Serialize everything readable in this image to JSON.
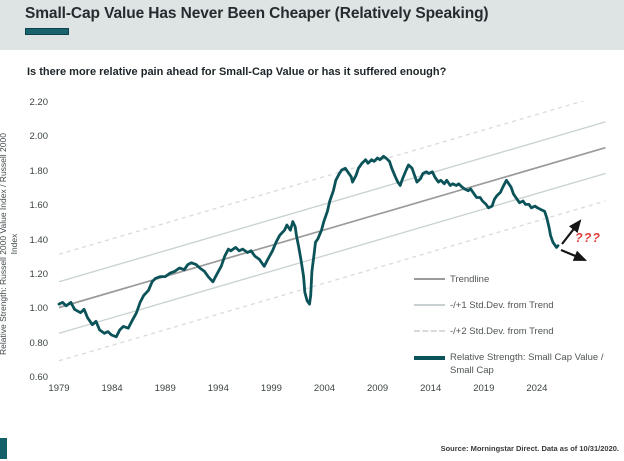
{
  "header": {
    "title": "Small-Cap Value Has Never Been Cheaper (Relatively Speaking)"
  },
  "subtitle": "Is there more relative pain ahead for Small-Cap Value or has it suffered enough?",
  "source": "Source: Morningstar Direct. Data as of 10/31/2020.",
  "annotation": {
    "question_marks": "???"
  },
  "colors": {
    "accent_teal": "#136069",
    "series_teal": "#0b5359",
    "trend_gray": "#9b9b9b",
    "band1_gray": "#c8d1d1",
    "band2_gray": "#d6dbdb",
    "question_red": "#e03c3c",
    "header_bg": "#dee3e4"
  },
  "chart_data": {
    "type": "line",
    "title": "Is there more relative pain ahead for Small-Cap Value or has it suffered enough?",
    "ylabel_lines": [
      "Relative Strength: Russell 2000 Value Index / Russell 2000",
      "Index"
    ],
    "xlabel": "",
    "x_ticks": [
      "1979",
      "1984",
      "1989",
      "1994",
      "1999",
      "2004",
      "2009",
      "2014",
      "2019",
      "2024"
    ],
    "y_ticks": [
      "2.20",
      "2.00",
      "1.80",
      "1.60",
      "1.40",
      "1.20",
      "1.00",
      "0.80",
      "0.60"
    ],
    "ylim": [
      0.6,
      2.2
    ],
    "xlim": [
      1979,
      2024
    ],
    "grid": false,
    "legend": {
      "position": "inside-lower-right",
      "items": [
        {
          "label": "Trendline",
          "style": "solid-gray"
        },
        {
          "label": "-/+1 Std.Dev. from Trend",
          "style": "solid-lightgray"
        },
        {
          "label": "-/+2 Std.Dev. from Trend",
          "style": "dashed-lightgray"
        },
        {
          "label": "Relative Strength: Small Cap Value / Small Cap",
          "style": "thick-teal"
        }
      ]
    },
    "trend": {
      "years": [
        1979,
        2024.8
      ],
      "values": [
        1.01,
        1.94
      ],
      "std1": 0.15,
      "std2": 0.31
    },
    "series": [
      {
        "name": "Relative Strength: Small Cap Value / Small Cap",
        "points": [
          [
            1979.0,
            1.03
          ],
          [
            1979.3,
            1.04
          ],
          [
            1979.6,
            1.02
          ],
          [
            1980.0,
            1.04
          ],
          [
            1980.3,
            1.0
          ],
          [
            1980.8,
            0.98
          ],
          [
            1981.1,
            1.0
          ],
          [
            1981.4,
            0.95
          ],
          [
            1981.8,
            0.91
          ],
          [
            1982.1,
            0.93
          ],
          [
            1982.4,
            0.88
          ],
          [
            1982.8,
            0.86
          ],
          [
            1983.1,
            0.87
          ],
          [
            1983.4,
            0.85
          ],
          [
            1983.8,
            0.84
          ],
          [
            1984.1,
            0.88
          ],
          [
            1984.4,
            0.9
          ],
          [
            1984.8,
            0.89
          ],
          [
            1985.1,
            0.93
          ],
          [
            1985.5,
            0.98
          ],
          [
            1985.8,
            1.04
          ],
          [
            1986.1,
            1.08
          ],
          [
            1986.5,
            1.11
          ],
          [
            1986.8,
            1.16
          ],
          [
            1987.1,
            1.18
          ],
          [
            1987.5,
            1.19
          ],
          [
            1987.9,
            1.19
          ],
          [
            1988.3,
            1.21
          ],
          [
            1988.7,
            1.22
          ],
          [
            1989.1,
            1.24
          ],
          [
            1989.5,
            1.23
          ],
          [
            1989.8,
            1.26
          ],
          [
            1990.1,
            1.27
          ],
          [
            1990.5,
            1.26
          ],
          [
            1990.8,
            1.24
          ],
          [
            1991.2,
            1.22
          ],
          [
            1991.5,
            1.19
          ],
          [
            1991.9,
            1.16
          ],
          [
            1992.2,
            1.2
          ],
          [
            1992.6,
            1.25
          ],
          [
            1992.9,
            1.31
          ],
          [
            1993.2,
            1.35
          ],
          [
            1993.4,
            1.34
          ],
          [
            1993.8,
            1.36
          ],
          [
            1994.1,
            1.34
          ],
          [
            1994.4,
            1.35
          ],
          [
            1994.8,
            1.33
          ],
          [
            1995.1,
            1.34
          ],
          [
            1995.4,
            1.31
          ],
          [
            1995.8,
            1.29
          ],
          [
            1996.2,
            1.25
          ],
          [
            1996.5,
            1.29
          ],
          [
            1996.9,
            1.34
          ],
          [
            1997.2,
            1.39
          ],
          [
            1997.5,
            1.43
          ],
          [
            1997.9,
            1.46
          ],
          [
            1998.1,
            1.49
          ],
          [
            1998.4,
            1.46
          ],
          [
            1998.6,
            1.51
          ],
          [
            1998.8,
            1.48
          ],
          [
            1998.9,
            1.43
          ],
          [
            1999.1,
            1.36
          ],
          [
            1999.3,
            1.28
          ],
          [
            1999.5,
            1.19
          ],
          [
            1999.6,
            1.1
          ],
          [
            1999.8,
            1.05
          ],
          [
            2000.0,
            1.03
          ],
          [
            2000.1,
            1.08
          ],
          [
            2000.2,
            1.22
          ],
          [
            2000.4,
            1.33
          ],
          [
            2000.5,
            1.39
          ],
          [
            2000.7,
            1.41
          ],
          [
            2001.0,
            1.46
          ],
          [
            2001.2,
            1.51
          ],
          [
            2001.5,
            1.57
          ],
          [
            2001.7,
            1.63
          ],
          [
            2002.0,
            1.69
          ],
          [
            2002.2,
            1.75
          ],
          [
            2002.5,
            1.79
          ],
          [
            2002.7,
            1.81
          ],
          [
            2003.0,
            1.82
          ],
          [
            2003.2,
            1.8
          ],
          [
            2003.5,
            1.77
          ],
          [
            2003.6,
            1.74
          ],
          [
            2003.9,
            1.78
          ],
          [
            2004.1,
            1.82
          ],
          [
            2004.4,
            1.85
          ],
          [
            2004.7,
            1.87
          ],
          [
            2004.9,
            1.85
          ],
          [
            2005.2,
            1.87
          ],
          [
            2005.4,
            1.86
          ],
          [
            2005.7,
            1.88
          ],
          [
            2005.9,
            1.87
          ],
          [
            2006.2,
            1.89
          ],
          [
            2006.4,
            1.88
          ],
          [
            2006.7,
            1.86
          ],
          [
            2006.9,
            1.82
          ],
          [
            2007.2,
            1.77
          ],
          [
            2007.4,
            1.74
          ],
          [
            2007.6,
            1.72
          ],
          [
            2007.8,
            1.76
          ],
          [
            2008.1,
            1.81
          ],
          [
            2008.3,
            1.84
          ],
          [
            2008.6,
            1.82
          ],
          [
            2008.8,
            1.78
          ],
          [
            2009.0,
            1.74
          ],
          [
            2009.3,
            1.76
          ],
          [
            2009.5,
            1.79
          ],
          [
            2009.8,
            1.8
          ],
          [
            2010.0,
            1.79
          ],
          [
            2010.3,
            1.8
          ],
          [
            2010.5,
            1.77
          ],
          [
            2010.8,
            1.74
          ],
          [
            2011.0,
            1.75
          ],
          [
            2011.3,
            1.73
          ],
          [
            2011.5,
            1.75
          ],
          [
            2011.8,
            1.72
          ],
          [
            2012.0,
            1.73
          ],
          [
            2012.3,
            1.72
          ],
          [
            2012.5,
            1.73
          ],
          [
            2012.8,
            1.71
          ],
          [
            2013.0,
            1.7
          ],
          [
            2013.3,
            1.69
          ],
          [
            2013.5,
            1.7
          ],
          [
            2013.8,
            1.67
          ],
          [
            2014.0,
            1.65
          ],
          [
            2014.3,
            1.65
          ],
          [
            2014.5,
            1.63
          ],
          [
            2014.8,
            1.61
          ],
          [
            2015.0,
            1.59
          ],
          [
            2015.3,
            1.6
          ],
          [
            2015.5,
            1.64
          ],
          [
            2015.7,
            1.66
          ],
          [
            2016.0,
            1.68
          ],
          [
            2016.2,
            1.71
          ],
          [
            2016.5,
            1.75
          ],
          [
            2016.7,
            1.73
          ],
          [
            2016.9,
            1.71
          ],
          [
            2017.1,
            1.67
          ],
          [
            2017.4,
            1.64
          ],
          [
            2017.6,
            1.62
          ],
          [
            2017.9,
            1.63
          ],
          [
            2018.1,
            1.61
          ],
          [
            2018.4,
            1.61
          ],
          [
            2018.6,
            1.59
          ],
          [
            2018.9,
            1.6
          ],
          [
            2019.1,
            1.59
          ],
          [
            2019.4,
            1.58
          ],
          [
            2019.7,
            1.57
          ],
          [
            2019.9,
            1.53
          ],
          [
            2020.1,
            1.47
          ],
          [
            2020.2,
            1.43
          ],
          [
            2020.4,
            1.39
          ],
          [
            2020.6,
            1.37
          ],
          [
            2020.7,
            1.36
          ],
          [
            2020.83,
            1.37
          ]
        ]
      }
    ]
  }
}
